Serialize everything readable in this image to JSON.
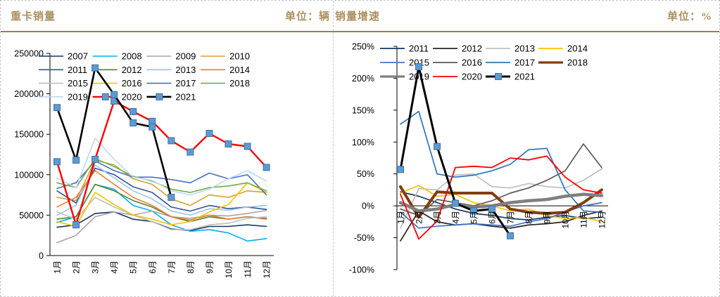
{
  "header": {
    "left_title": "重卡销量",
    "left_unit": "单位：辆",
    "right_title": "销量增速",
    "right_unit": "单位：%"
  },
  "colors": {
    "title_text": "#AC9060",
    "header_rule": "#998432",
    "axis": "#000000",
    "marker_fill": "#5B9BD5",
    "marker_stroke": "#41719C",
    "dashed_border": "#C8C8C8"
  },
  "chart_data": [
    {
      "type": "line",
      "title": "重卡销量",
      "unit_label": "单位：辆",
      "categories": [
        "1月",
        "2月",
        "3月",
        "4月",
        "5月",
        "6月",
        "7月",
        "8月",
        "9月",
        "10月",
        "11月",
        "12月"
      ],
      "ylim": [
        0,
        250000
      ],
      "grid": false,
      "legend_position": "top-left-overlay",
      "yticks": [
        {
          "value": 0,
          "label": "0"
        },
        {
          "value": 50000,
          "label": "50000"
        },
        {
          "value": 100000,
          "label": "100000"
        },
        {
          "value": 150000,
          "label": "150000"
        },
        {
          "value": 200000,
          "label": "200000"
        },
        {
          "value": 250000,
          "label": "250000"
        }
      ],
      "legend_rows": [
        [
          "2007",
          "2008",
          "2009",
          "2010"
        ],
        [
          "2011",
          "2012",
          "2013",
          "2014"
        ],
        [
          "2015",
          "2016",
          "2017",
          "2018"
        ],
        [
          "2019",
          "2020",
          "2021"
        ]
      ],
      "series": [
        {
          "name": "2007",
          "color": "#17375E",
          "width": 1.6,
          "marker": false,
          "values": [
            35000,
            38000,
            52000,
            54000,
            45000,
            42000,
            33000,
            31000,
            36000,
            36000,
            38000,
            36000
          ]
        },
        {
          "name": "2008",
          "color": "#00B0F0",
          "width": 1.6,
          "marker": false,
          "values": [
            41000,
            48000,
            88000,
            82000,
            62000,
            55000,
            38000,
            30000,
            32000,
            28000,
            18000,
            21000
          ]
        },
        {
          "name": "2009",
          "color": "#A6A6A6",
          "width": 1.6,
          "marker": false,
          "values": [
            16000,
            25000,
            48000,
            54000,
            50000,
            55000,
            48000,
            46000,
            50000,
            49000,
            52000,
            56000
          ]
        },
        {
          "name": "2010",
          "color": "#DBA02E",
          "width": 1.6,
          "marker": false,
          "values": [
            72000,
            68000,
            118000,
            112000,
            95000,
            88000,
            70000,
            62000,
            75000,
            72000,
            80000,
            78000
          ]
        },
        {
          "name": "2011",
          "color": "#2F5597",
          "width": 1.6,
          "marker": false,
          "values": [
            80000,
            65000,
            108000,
            100000,
            85000,
            78000,
            60000,
            55000,
            62000,
            58000,
            60000,
            57000
          ]
        },
        {
          "name": "2012",
          "color": "#548235",
          "width": 1.6,
          "marker": false,
          "values": [
            45000,
            48000,
            88000,
            80000,
            68000,
            60000,
            48000,
            42000,
            48000,
            45000,
            48000,
            46000
          ]
        },
        {
          "name": "2013",
          "color": "#9DC3E6",
          "width": 1.6,
          "marker": false,
          "values": [
            50000,
            62000,
            112000,
            96000,
            80000,
            70000,
            55000,
            50000,
            58000,
            56000,
            60000,
            62000
          ]
        },
        {
          "name": "2014",
          "color": "#ED7D31",
          "width": 1.6,
          "marker": false,
          "values": [
            60000,
            72000,
            105000,
            88000,
            72000,
            62000,
            48000,
            44000,
            50000,
            45000,
            48000,
            45000
          ]
        },
        {
          "name": "2015",
          "color": "#BFBFBF",
          "width": 1.6,
          "marker": false,
          "values": [
            54000,
            45000,
            72000,
            60000,
            50000,
            42000,
            32000,
            32000,
            38000,
            40000,
            46000,
            48000
          ]
        },
        {
          "name": "2016",
          "color": "#FFC000",
          "width": 1.6,
          "marker": false,
          "values": [
            42000,
            36000,
            78000,
            63000,
            50000,
            45000,
            38000,
            42000,
            54000,
            63000,
            90000,
            78000
          ]
        },
        {
          "name": "2017",
          "color": "#4472C4",
          "width": 1.6,
          "marker": false,
          "values": [
            83000,
            90000,
            117000,
            105000,
            97000,
            97000,
            94000,
            90000,
            102000,
            95000,
            100000,
            75000
          ]
        },
        {
          "name": "2018",
          "color": "#70AD47",
          "width": 1.6,
          "marker": false,
          "values": [
            90000,
            84000,
            120000,
            110000,
            98000,
            92000,
            82000,
            78000,
            84000,
            86000,
            90000,
            80000
          ]
        },
        {
          "name": "2019",
          "color": "#BDD7EE",
          "width": 1.6,
          "marker": false,
          "values": [
            96000,
            84000,
            145000,
            119000,
            97000,
            93000,
            80000,
            75000,
            82000,
            95000,
            105000,
            92000
          ]
        },
        {
          "name": "2020",
          "color": "#FF0000",
          "width": 2.4,
          "marker": true,
          "values": [
            116000,
            38000,
            119000,
            191000,
            178000,
            166000,
            142000,
            128000,
            151000,
            138000,
            135000,
            109000
          ]
        },
        {
          "name": "2021",
          "color": "#000000",
          "width": 2.6,
          "marker": true,
          "values": [
            183000,
            118000,
            232000,
            199000,
            164000,
            159000,
            72000,
            null,
            null,
            null,
            null,
            null
          ]
        }
      ]
    },
    {
      "type": "line",
      "title": "销量增速",
      "unit_label": "单位：%",
      "categories": [
        "1月",
        "2月",
        "3月",
        "4月",
        "5月",
        "6月",
        "7月",
        "8月",
        "9月",
        "10月",
        "11月",
        "12月"
      ],
      "ylim": [
        -100,
        250
      ],
      "grid": false,
      "legend_position": "top-left-overlay",
      "yticks": [
        {
          "value": -100,
          "label": "-100%"
        },
        {
          "value": -50,
          "label": "-50%"
        },
        {
          "value": 0,
          "label": "0%"
        },
        {
          "value": 50,
          "label": "50%"
        },
        {
          "value": 100,
          "label": "100%"
        },
        {
          "value": 150,
          "label": "150%"
        },
        {
          "value": 200,
          "label": "200%"
        },
        {
          "value": 250,
          "label": "250%"
        }
      ],
      "legend_rows": [
        [
          "2011",
          "2012",
          "2013",
          "2014"
        ],
        [
          "2015",
          "2016",
          "2017",
          "2018"
        ],
        [
          "2019",
          "2020",
          "2021"
        ]
      ],
      "series": [
        {
          "name": "2011",
          "color": "#17375E",
          "width": 1.7,
          "marker": false,
          "values": [
            22,
            15,
            5,
            -5,
            -12,
            -15,
            -20,
            -22,
            -18,
            -15,
            -20,
            -18
          ]
        },
        {
          "name": "2012",
          "color": "#262626",
          "width": 1.7,
          "marker": false,
          "values": [
            -55,
            -8,
            -25,
            -30,
            -28,
            -32,
            -35,
            -30,
            -28,
            -25,
            -15,
            -8
          ]
        },
        {
          "name": "2013",
          "color": "#BFBFBF",
          "width": 1.7,
          "marker": false,
          "values": [
            -35,
            27,
            25,
            48,
            50,
            30,
            28,
            35,
            30,
            28,
            40,
            58
          ]
        },
        {
          "name": "2014",
          "color": "#FFC000",
          "width": 1.7,
          "marker": false,
          "values": [
            20,
            32,
            15,
            18,
            5,
            0,
            -8,
            -5,
            -15,
            -20,
            -18,
            -25
          ]
        },
        {
          "name": "2015",
          "color": "#4472C4",
          "width": 1.7,
          "marker": false,
          "values": [
            -10,
            -35,
            -32,
            -30,
            -28,
            -30,
            -32,
            -25,
            -20,
            -10,
            0,
            5
          ]
        },
        {
          "name": "2016",
          "color": "#595959",
          "width": 1.7,
          "marker": false,
          "values": [
            -5,
            -15,
            10,
            5,
            0,
            8,
            20,
            28,
            40,
            55,
            97,
            60
          ]
        },
        {
          "name": "2017",
          "color": "#2E75B6",
          "width": 1.7,
          "marker": false,
          "values": [
            128,
            148,
            50,
            45,
            48,
            55,
            65,
            88,
            90,
            25,
            -8,
            -10
          ]
        },
        {
          "name": "2018",
          "color": "#843C0C",
          "width": 4,
          "marker": false,
          "values": [
            30,
            -18,
            22,
            20,
            20,
            20,
            -5,
            -10,
            -12,
            -10,
            5,
            25
          ]
        },
        {
          "name": "2019",
          "color": "#7F7F7F",
          "width": 4.5,
          "marker": false,
          "values": [
            5,
            -8,
            -5,
            2,
            -2,
            0,
            5,
            8,
            10,
            15,
            18,
            16
          ]
        },
        {
          "name": "2020",
          "color": "#FF0000",
          "width": 1.8,
          "marker": false,
          "values": [
            18,
            -52,
            -24,
            60,
            62,
            60,
            75,
            72,
            78,
            45,
            25,
            20
          ]
        },
        {
          "name": "2021",
          "color": "#000000",
          "width": 3,
          "marker": true,
          "values": [
            57,
            218,
            93,
            4,
            -8,
            -5,
            -47,
            null,
            null,
            null,
            null,
            null
          ]
        }
      ]
    }
  ]
}
